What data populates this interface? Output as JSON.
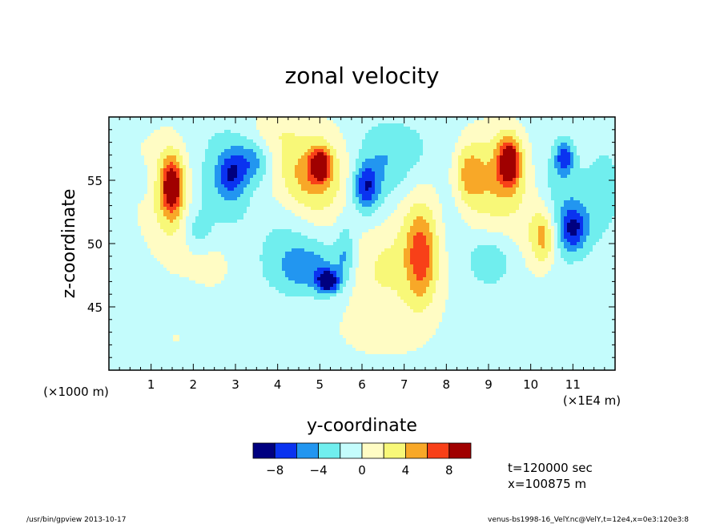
{
  "chart_data": {
    "type": "heatmap",
    "title": "zonal velocity",
    "xlabel": "y-coordinate",
    "ylabel": "z-coordinate",
    "x_range": [
      0,
      12
    ],
    "y_range": [
      40,
      60
    ],
    "x_ticks": [
      1,
      2,
      3,
      4,
      5,
      6,
      7,
      8,
      9,
      10,
      11
    ],
    "x_tick_labels": [
      "1",
      "2",
      "3",
      "4",
      "5",
      "6",
      "7",
      "8",
      "9",
      "10",
      "11"
    ],
    "y_ticks": [
      45,
      50,
      55
    ],
    "y_tick_labels": [
      "45",
      "50",
      "55"
    ],
    "x_unit_note": "(×1E4 m)",
    "x_secondary_note": "(×1000 m)",
    "colorbar": {
      "levels": [
        -10,
        -8,
        -6,
        -4,
        -2,
        0,
        2,
        4,
        6,
        8,
        10
      ],
      "tick_values": [
        -8,
        -4,
        0,
        4,
        8
      ],
      "tick_labels": [
        "−8",
        "−4",
        "0",
        "4",
        "8"
      ],
      "colors": [
        "#000080",
        "#0a33f0",
        "#2296f0",
        "#70eeee",
        "#c4fcfc",
        "#fffcc4",
        "#f8f878",
        "#f8a828",
        "#f84018",
        "#a00000"
      ]
    },
    "features": [
      {
        "y": 1.5,
        "z": 54.5,
        "value": 9,
        "sy": 0.18,
        "sz": 1.6
      },
      {
        "y": 1.4,
        "z": 54.0,
        "value": 3,
        "sy": 0.45,
        "sz": 3.0
      },
      {
        "y": 1.0,
        "z": 55.5,
        "value": 1,
        "sy": 0.6,
        "sz": 2.5
      },
      {
        "y": 5.0,
        "z": 56.2,
        "value": 9,
        "sy": 0.15,
        "sz": 0.8
      },
      {
        "y": 4.9,
        "z": 55.5,
        "value": 5,
        "sy": 0.55,
        "sz": 2.2
      },
      {
        "y": 4.6,
        "z": 54.0,
        "value": 2,
        "sy": 0.8,
        "sz": 3.8
      },
      {
        "y": 7.4,
        "z": 49.0,
        "value": 6,
        "sy": 0.25,
        "sz": 2.5
      },
      {
        "y": 7.1,
        "z": 49.5,
        "value": 3,
        "sy": 0.7,
        "sz": 4.5
      },
      {
        "y": 6.2,
        "z": 48.5,
        "value": 2,
        "sy": 0.45,
        "sz": 2.5
      },
      {
        "y": 8.5,
        "z": 55.5,
        "value": 5,
        "sy": 0.25,
        "sz": 1.8
      },
      {
        "y": 8.8,
        "z": 54.0,
        "value": 2,
        "sy": 0.6,
        "sz": 3.5
      },
      {
        "y": 9.5,
        "z": 56.5,
        "value": 9,
        "sy": 0.18,
        "sz": 1.3
      },
      {
        "y": 9.3,
        "z": 55.5,
        "value": 4,
        "sy": 0.4,
        "sz": 2.5
      },
      {
        "y": 10.3,
        "z": 50.5,
        "value": 5,
        "sy": 0.2,
        "sz": 1.5
      },
      {
        "y": 10.1,
        "z": 51.5,
        "value": 2,
        "sy": 0.4,
        "sz": 3.0
      },
      {
        "y": 3.9,
        "z": 59.0,
        "value": 2,
        "sy": 0.4,
        "sz": 1.5
      },
      {
        "y": 2.0,
        "z": 50.0,
        "value": 1.5,
        "sy": 0.6,
        "sz": 2.0
      },
      {
        "y": 1.6,
        "z": 42.5,
        "value": 1,
        "sy": 1.2,
        "sz": 2.5
      },
      {
        "y": 6.0,
        "z": 43.0,
        "value": 1,
        "sy": 0.9,
        "sz": 2.2
      },
      {
        "y": 11.3,
        "z": 47.5,
        "value": 1,
        "sy": 0.6,
        "sz": 2.5
      },
      {
        "y": 2.6,
        "z": 48.5,
        "value": 1,
        "sy": 0.45,
        "sz": 2.0
      },
      {
        "y": 10.8,
        "z": 56.5,
        "value": 1,
        "sy": 0.5,
        "sz": 2.5
      },
      {
        "y": 5.2,
        "z": 47.0,
        "value": -9,
        "sy": 0.18,
        "sz": 0.6
      },
      {
        "y": 4.8,
        "z": 48.0,
        "value": -4,
        "sy": 0.6,
        "sz": 1.4
      },
      {
        "y": 4.3,
        "z": 50.5,
        "value": -2.5,
        "sy": 0.55,
        "sz": 2.5
      },
      {
        "y": 2.9,
        "z": 55.5,
        "value": -5,
        "sy": 0.22,
        "sz": 1.2
      },
      {
        "y": 2.7,
        "z": 54.5,
        "value": -2.5,
        "sy": 0.55,
        "sz": 3.2
      },
      {
        "y": 2.1,
        "z": 51.0,
        "value": -3,
        "sy": 0.25,
        "sz": 1.2
      },
      {
        "y": 3.4,
        "z": 56.5,
        "value": -4,
        "sy": 0.3,
        "sz": 1.2
      },
      {
        "y": 6.1,
        "z": 54.5,
        "value": -6,
        "sy": 0.2,
        "sz": 1.2
      },
      {
        "y": 6.2,
        "z": 54.0,
        "value": -2.5,
        "sy": 0.5,
        "sz": 3.0
      },
      {
        "y": 6.8,
        "z": 56.5,
        "value": -2,
        "sy": 0.45,
        "sz": 2.0
      },
      {
        "y": 11.0,
        "z": 51.2,
        "value": -6,
        "sy": 0.22,
        "sz": 1.2
      },
      {
        "y": 10.9,
        "z": 51.5,
        "value": -2.5,
        "sy": 0.5,
        "sz": 3.0
      },
      {
        "y": 10.8,
        "z": 56.8,
        "value": -6,
        "sy": 0.15,
        "sz": 0.9
      },
      {
        "y": 10.6,
        "z": 55.5,
        "value": -2,
        "sy": 0.35,
        "sz": 2.0
      },
      {
        "y": 9.0,
        "z": 48.8,
        "value": -3,
        "sy": 0.4,
        "sz": 1.5
      },
      {
        "y": 8.2,
        "z": 53.0,
        "value": -2,
        "sy": 0.3,
        "sz": 3.0
      },
      {
        "y": 5.6,
        "z": 49.5,
        "value": -3,
        "sy": 0.15,
        "sz": 1.5
      },
      {
        "y": 0.8,
        "z": 55.0,
        "value": -2,
        "sy": 0.25,
        "sz": 1.2
      },
      {
        "y": 7.2,
        "z": 57.5,
        "value": -1,
        "sy": 0.9,
        "sz": 1.6
      },
      {
        "y": 11.7,
        "z": 54.5,
        "value": -1.5,
        "sy": 0.35,
        "sz": 3.0
      }
    ],
    "background_value": -1
  },
  "annotations": {
    "time_label": "t=120000 sec",
    "x_label": "x=100875 m",
    "footer_left": "/usr/bin/gpview  2013-10-17",
    "footer_right": "venus-bs1998-16_VelY.nc@VelY,t=12e4,x=0e3:120e3:8"
  }
}
